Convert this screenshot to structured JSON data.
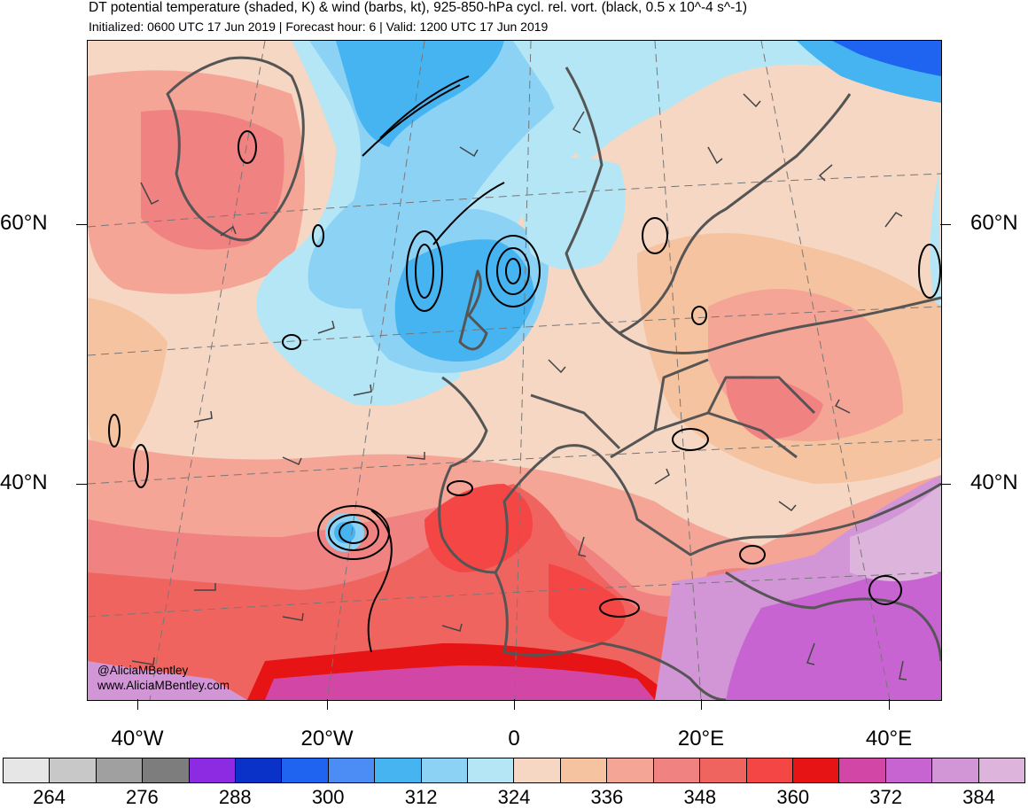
{
  "header": {
    "title": "DT potential temperature (shaded, K) & wind (barbs, kt), 925-850-hPa cycl. rel. vort. (black, 0.5 x 10^-4 s^-1)",
    "subtitle": "Initialized: 0600 UTC 17 Jun 2019 | Forecast hour: 6 | Valid: 1200 UTC 17 Jun 2019"
  },
  "axes": {
    "lat_labels": [
      "60°N",
      "40°N"
    ],
    "lon_labels": [
      "40°W",
      "20°W",
      "0",
      "20°E",
      "40°E"
    ]
  },
  "credits": {
    "handle": "@AliciaMBentley",
    "website": "www.AliciaMBentley.com"
  },
  "colorbar": {
    "unit": "K",
    "labels": [
      "264",
      "276",
      "288",
      "300",
      "312",
      "324",
      "336",
      "348",
      "360",
      "372",
      "384"
    ],
    "colors": [
      "#e6e6e6",
      "#c8c8c8",
      "#a0a0a0",
      "#7d7d7d",
      "#8c2be2",
      "#0a32c8",
      "#1e64f0",
      "#4b8cf5",
      "#46b4f0",
      "#8cd2f5",
      "#b4e6f5",
      "#f5d7c3",
      "#f5c3a0",
      "#f5a596",
      "#f08282",
      "#f0645f",
      "#f54646",
      "#e61414",
      "#d246a5",
      "#c864d2",
      "#d296d7",
      "#dcb4dc"
    ]
  },
  "colors": {
    "coast": "#555555",
    "contour": "#000000",
    "grid": "#777777",
    "barb": "#444444"
  }
}
